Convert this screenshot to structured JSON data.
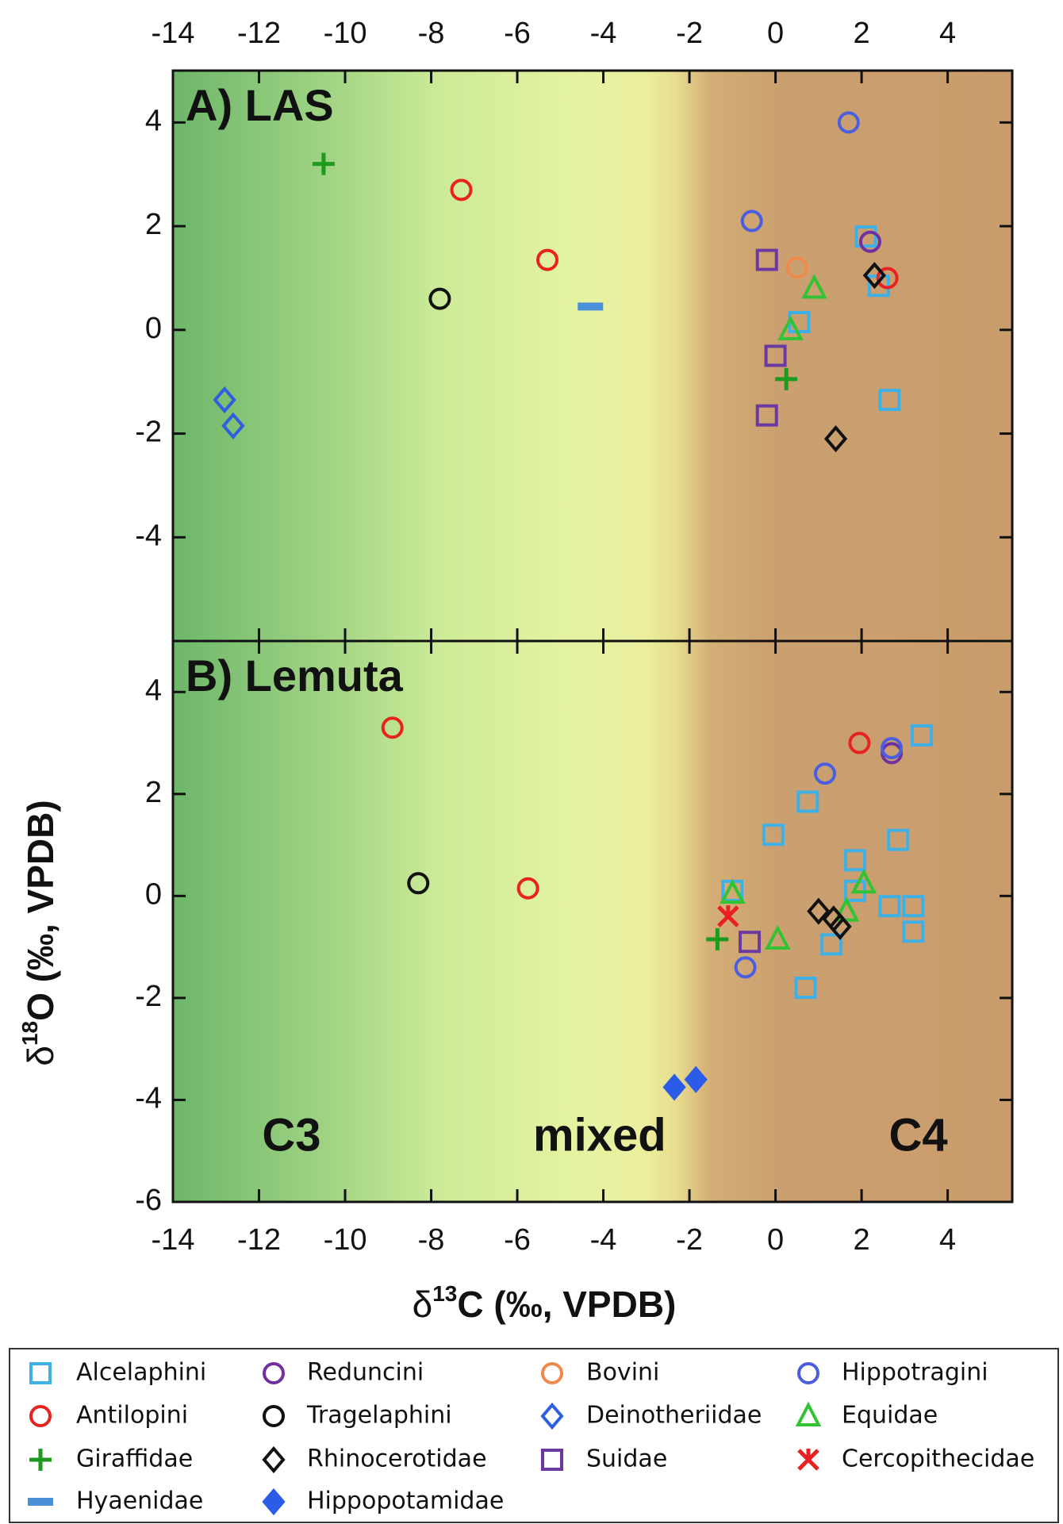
{
  "chart_data": [
    {
      "type": "scatter",
      "title": "A) LAS",
      "x_tick_side": "top",
      "xlim": [
        -14,
        5.5
      ],
      "ylim": [
        -6,
        5
      ],
      "xticks": [
        -14,
        -12,
        -10,
        -8,
        -6,
        -4,
        -2,
        0,
        2,
        4
      ],
      "yticks": [
        -4,
        -2,
        0,
        2,
        4
      ],
      "series": [
        {
          "name": "Alcelaphini",
          "x": [
            2.1,
            2.4,
            0.55,
            2.65
          ],
          "y": [
            1.8,
            0.85,
            0.15,
            -1.35
          ]
        },
        {
          "name": "Reduncini",
          "x": [
            2.2
          ],
          "y": [
            1.7
          ]
        },
        {
          "name": "Bovini",
          "x": [
            0.5
          ],
          "y": [
            1.2
          ]
        },
        {
          "name": "Hippotragini",
          "x": [
            1.7,
            -0.55
          ],
          "y": [
            4.0,
            2.1
          ]
        },
        {
          "name": "Antilopini",
          "x": [
            -7.3,
            -5.3,
            2.6
          ],
          "y": [
            2.7,
            1.35,
            1.0
          ]
        },
        {
          "name": "Tragelaphini",
          "x": [
            -7.8
          ],
          "y": [
            0.6
          ]
        },
        {
          "name": "Deinotheriidae",
          "x": [
            -12.8,
            -12.6
          ],
          "y": [
            -1.35,
            -1.85
          ]
        },
        {
          "name": "Equidae",
          "x": [
            0.9,
            0.35
          ],
          "y": [
            0.8,
            0.0
          ]
        },
        {
          "name": "Giraffidae",
          "x": [
            -10.5,
            0.25
          ],
          "y": [
            3.2,
            -0.95
          ]
        },
        {
          "name": "Rhinocerotidae",
          "x": [
            2.3,
            1.4
          ],
          "y": [
            1.05,
            -2.1
          ]
        },
        {
          "name": "Suidae",
          "x": [
            -0.2,
            0.0,
            -0.2
          ],
          "y": [
            1.35,
            -0.5,
            -1.65
          ]
        },
        {
          "name": "Hyaenidae",
          "x": [
            -4.3
          ],
          "y": [
            0.45
          ]
        }
      ]
    },
    {
      "type": "scatter",
      "title": "B) Lemuta",
      "x_tick_side": "bottom",
      "xlim": [
        -14,
        5.5
      ],
      "ylim": [
        -6,
        5
      ],
      "xticks": [
        -14,
        -12,
        -10,
        -8,
        -6,
        -4,
        -2,
        0,
        2,
        4
      ],
      "yticks": [
        -6,
        -4,
        -2,
        0,
        2,
        4
      ],
      "annotations": [
        "C3",
        "mixed",
        "C4"
      ],
      "series": [
        {
          "name": "Alcelaphini",
          "x": [
            3.4,
            0.75,
            -0.05,
            2.85,
            1.85,
            1.85,
            2.65,
            3.2,
            3.2,
            1.3,
            0.7,
            -1.0
          ],
          "y": [
            3.15,
            1.85,
            1.2,
            1.1,
            0.7,
            0.1,
            -0.2,
            -0.2,
            -0.7,
            -0.95,
            -1.8,
            0.1
          ]
        },
        {
          "name": "Reduncini",
          "x": [
            2.7
          ],
          "y": [
            2.8
          ]
        },
        {
          "name": "Hippotragini",
          "x": [
            2.7,
            1.15,
            -0.7
          ],
          "y": [
            2.9,
            2.4,
            -1.4
          ]
        },
        {
          "name": "Antilopini",
          "x": [
            -8.9,
            1.95,
            -5.75
          ],
          "y": [
            3.3,
            3.0,
            0.15
          ]
        },
        {
          "name": "Tragelaphini",
          "x": [
            -8.3
          ],
          "y": [
            0.25
          ]
        },
        {
          "name": "Equidae",
          "x": [
            2.05,
            1.65,
            0.05,
            -1.0
          ],
          "y": [
            0.25,
            -0.3,
            -0.85,
            0.05
          ]
        },
        {
          "name": "Giraffidae",
          "x": [
            -1.35
          ],
          "y": [
            -0.85
          ]
        },
        {
          "name": "Rhinocerotidae",
          "x": [
            1.0,
            1.35,
            1.5
          ],
          "y": [
            -0.3,
            -0.45,
            -0.6
          ]
        },
        {
          "name": "Suidae",
          "x": [
            -0.6
          ],
          "y": [
            -0.9
          ]
        },
        {
          "name": "Cercopithecidae",
          "x": [
            -1.1
          ],
          "y": [
            -0.4
          ]
        },
        {
          "name": "Hippopotamidae",
          "x": [
            -2.35,
            -1.85
          ],
          "y": [
            -3.75,
            -3.6
          ]
        }
      ]
    }
  ],
  "x_label": {
    "prefix": "δ",
    "sup": "13",
    "rest": "C (‰, VPDB)"
  },
  "y_label": {
    "prefix": "δ",
    "sup": "18",
    "rest": "O (‰, VPDB)"
  },
  "legend": {
    "entries": [
      {
        "name": "Alcelaphini",
        "color": "#3fb0e6",
        "marker": "square"
      },
      {
        "name": "Reduncini",
        "color": "#7030a0",
        "marker": "circle"
      },
      {
        "name": "Bovini",
        "color": "#f08a4b",
        "marker": "circle"
      },
      {
        "name": "Hippotragini",
        "color": "#4a5fe0",
        "marker": "circle"
      },
      {
        "name": "Antilopini",
        "color": "#e8221e",
        "marker": "circle"
      },
      {
        "name": "Tragelaphini",
        "color": "#111111",
        "marker": "circle"
      },
      {
        "name": "Deinotheriidae",
        "color": "#2f5fe0",
        "marker": "diamond"
      },
      {
        "name": "Equidae",
        "color": "#33c233",
        "marker": "triangle"
      },
      {
        "name": "Giraffidae",
        "color": "#1e9a1e",
        "marker": "plus"
      },
      {
        "name": "Rhinocerotidae",
        "color": "#111111",
        "marker": "diamond"
      },
      {
        "name": "Suidae",
        "color": "#6a3aa0",
        "marker": "square"
      },
      {
        "name": "Cercopithecidae",
        "color": "#e82020",
        "marker": "cross"
      },
      {
        "name": "Hyaenidae",
        "color": "#4a90d9",
        "marker": "dash"
      },
      {
        "name": "Hippopotamidae",
        "color": "#2a5ce8",
        "marker": "filled-diamond"
      }
    ]
  }
}
